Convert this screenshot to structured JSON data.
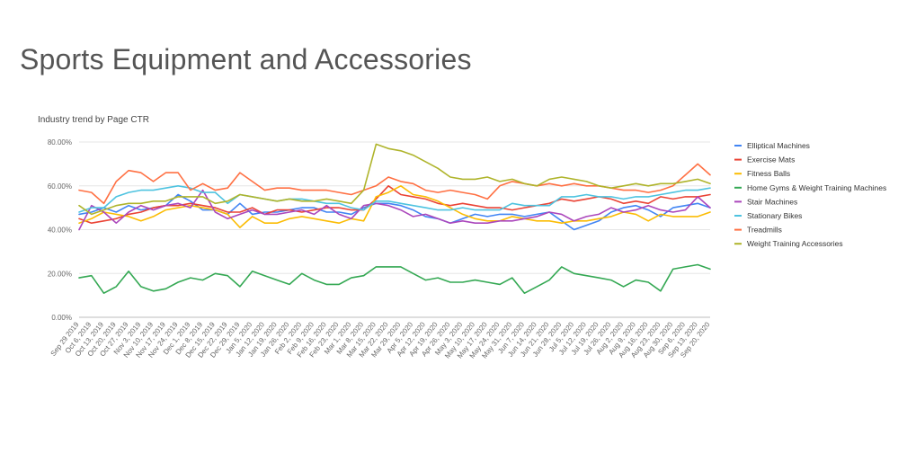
{
  "page": {
    "title": "Sports Equipment and Accessories"
  },
  "chart_data": {
    "type": "line",
    "title": "Industry trend by Page CTR",
    "xlabel": "",
    "ylabel": "",
    "ylim": [
      0,
      80
    ],
    "y_ticks": [
      0,
      20,
      40,
      60,
      80
    ],
    "y_tick_labels": [
      "0.00%",
      "20.00%",
      "40.00%",
      "60.00%",
      "80.00%"
    ],
    "grid": true,
    "legend_position": "right",
    "categories": [
      "Sep 29 2019",
      "Oct 6, 2019",
      "Oct 13, 2019",
      "Oct 20, 2019",
      "Oct 27, 2019",
      "Nov 3, 2019",
      "Nov 10, 2019",
      "Nov 17, 2019",
      "Nov 24, 2019",
      "Dec 1, 2019",
      "Dec 8, 2019",
      "Dec 15, 2019",
      "Dec 22, 2019",
      "Dec 29, 2019",
      "Jan 5, 2020",
      "Jan 12, 2020",
      "Jan 19, 2020",
      "Jan 26, 2020",
      "Feb 2, 2020",
      "Feb 9, 2020",
      "Feb 16, 2020",
      "Feb 23, 2020",
      "Mar 1, 2020",
      "Mar 8, 2020",
      "Mar 15, 2020",
      "Mar 22, 2020",
      "Mar 29, 2020",
      "Apr 5, 2020",
      "Apr 12, 2020",
      "Apr 19, 2020",
      "Apr 26, 2020",
      "May 3, 2020",
      "May 10, 2020",
      "May 17, 2020",
      "May 24, 2020",
      "May 31, 2020",
      "Jun 7, 2020",
      "Jun 14, 2020",
      "Jun 21, 2020",
      "Jun 28, 2020",
      "Jul 5, 2020",
      "Jul 12, 2020",
      "Jul 19, 2020",
      "Jul 26, 2020",
      "Aug 2, 2020",
      "Aug 9, 2020",
      "Aug 16, 2020",
      "Aug 23, 2020",
      "Aug 30, 2020",
      "Sep 6, 2020",
      "Sep 13, 2020",
      "Sep 20, 2020"
    ],
    "series": [
      {
        "name": "Elliptical Machines",
        "color": "#4285f4",
        "values": [
          47,
          48,
          50,
          48,
          51,
          49,
          50,
          51,
          56,
          53,
          49,
          49,
          47,
          52,
          47,
          48,
          48,
          49,
          50,
          50,
          48,
          48,
          47,
          50,
          52,
          52,
          51,
          49,
          46,
          45,
          43,
          45,
          47,
          46,
          47,
          47,
          46,
          47,
          48,
          44,
          40,
          42,
          44,
          48,
          50,
          51,
          49,
          46,
          50,
          51,
          52,
          50
        ]
      },
      {
        "name": "Exercise Mats",
        "color": "#ea4335",
        "values": [
          45,
          43,
          44,
          45,
          47,
          48,
          50,
          51,
          51,
          52,
          51,
          50,
          48,
          48,
          50,
          47,
          49,
          49,
          48,
          49,
          50,
          50,
          49,
          49,
          54,
          60,
          56,
          55,
          54,
          52,
          51,
          52,
          51,
          50,
          50,
          49,
          50,
          51,
          52,
          54,
          53,
          54,
          55,
          54,
          52,
          53,
          52,
          55,
          54,
          55,
          55,
          56
        ]
      },
      {
        "name": "Fitness Balls",
        "color": "#fbbc04",
        "values": [
          43,
          45,
          48,
          47,
          46,
          44,
          46,
          49,
          50,
          51,
          50,
          49,
          47,
          41,
          46,
          43,
          43,
          45,
          46,
          45,
          44,
          43,
          45,
          44,
          55,
          57,
          60,
          56,
          55,
          53,
          50,
          47,
          45,
          44,
          44,
          46,
          45,
          44,
          44,
          43,
          44,
          44,
          45,
          46,
          48,
          47,
          44,
          47,
          46,
          46,
          46,
          48
        ]
      },
      {
        "name": "Home Gyms & Weight Training Machines",
        "color": "#34a853",
        "values": [
          18,
          19,
          11,
          14,
          21,
          14,
          12,
          13,
          16,
          18,
          17,
          20,
          19,
          14,
          21,
          19,
          17,
          15,
          20,
          17,
          15,
          15,
          18,
          19,
          23,
          23,
          23,
          20,
          17,
          18,
          16,
          16,
          17,
          16,
          15,
          18,
          11,
          14,
          17,
          23,
          20,
          19,
          18,
          17,
          14,
          17,
          16,
          12,
          22,
          23,
          24,
          22
        ]
      },
      {
        "name": "Stair Machines",
        "color": "#ab47bc",
        "values": [
          40,
          51,
          48,
          43,
          48,
          51,
          49,
          51,
          52,
          50,
          58,
          48,
          45,
          47,
          49,
          47,
          47,
          48,
          49,
          47,
          51,
          47,
          45,
          51,
          52,
          51,
          49,
          46,
          47,
          45,
          43,
          44,
          43,
          43,
          44,
          44,
          45,
          46,
          48,
          47,
          44,
          46,
          47,
          50,
          48,
          49,
          51,
          49,
          48,
          49,
          55,
          50
        ]
      },
      {
        "name": "Stationary Bikes",
        "color": "#4ec3e0",
        "values": [
          48,
          50,
          50,
          55,
          57,
          58,
          58,
          59,
          60,
          59,
          57,
          57,
          52,
          56,
          55,
          54,
          53,
          54,
          54,
          53,
          52,
          52,
          50,
          49,
          53,
          53,
          52,
          51,
          50,
          49,
          49,
          50,
          49,
          49,
          49,
          52,
          51,
          51,
          51,
          55,
          55,
          56,
          55,
          55,
          54,
          55,
          55,
          56,
          57,
          58,
          58,
          59
        ]
      },
      {
        "name": "Treadmills",
        "color": "#ff7043",
        "values": [
          58,
          57,
          52,
          62,
          67,
          66,
          62,
          66,
          66,
          58,
          61,
          58,
          59,
          66,
          62,
          58,
          59,
          59,
          58,
          58,
          58,
          57,
          56,
          58,
          60,
          64,
          62,
          61,
          58,
          57,
          58,
          57,
          56,
          54,
          60,
          62,
          61,
          60,
          61,
          60,
          61,
          60,
          60,
          59,
          58,
          58,
          57,
          58,
          60,
          65,
          70,
          65
        ]
      },
      {
        "name": "Weight Training Accessories",
        "color": "#afb42b",
        "values": [
          51,
          47,
          49,
          51,
          52,
          52,
          53,
          53,
          55,
          55,
          55,
          52,
          53,
          56,
          55,
          54,
          53,
          54,
          53,
          53,
          54,
          53,
          52,
          58,
          79,
          77,
          76,
          74,
          71,
          68,
          64,
          63,
          63,
          64,
          62,
          63,
          61,
          60,
          63,
          64,
          63,
          62,
          60,
          59,
          60,
          61,
          60,
          61,
          61,
          62,
          63,
          61
        ]
      }
    ]
  }
}
